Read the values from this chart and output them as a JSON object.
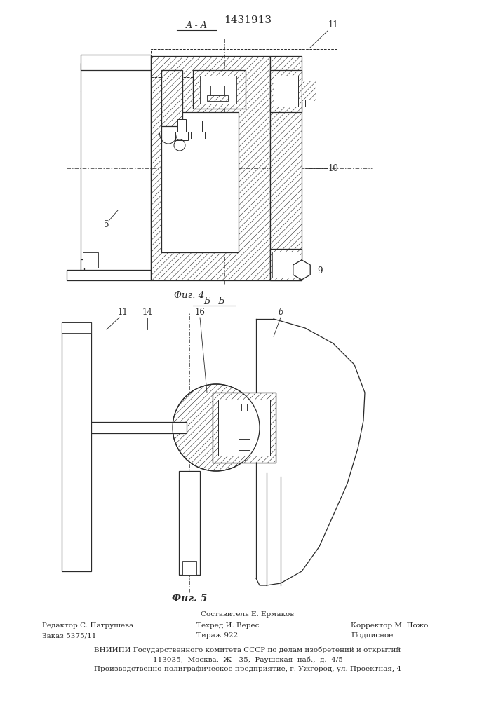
{
  "patent_number": "1431913",
  "fig4_label": "А - А",
  "fig5_label": "Б - Б",
  "fig4_caption": "Фиг. 4",
  "fig5_caption": "Фиг. 5",
  "footer_line1_center": "Составитель Е. Ермаков",
  "footer_col1_line1": "Редактор С. Патрушева",
  "footer_col1_line2": "Заказ 5375/11",
  "footer_col2_line1": "Техред И. Верес",
  "footer_col2_line2": "Тираж 922",
  "footer_col3_line1": "Корректор М. Пожо",
  "footer_col3_line2": "Подписное",
  "footer_vnipi": "ВНИИПИ Государственного комитета СССР по делам изобретений и открытий",
  "footer_address": "113035,  Москва,  Ж—35,  Раушская  наб.,  д.  4/5",
  "footer_factory": "Производственно-полиграфическое предприятие, г. Ужгород, ул. Проектная, 4",
  "bg_color": "#ffffff",
  "line_color": "#2a2a2a"
}
